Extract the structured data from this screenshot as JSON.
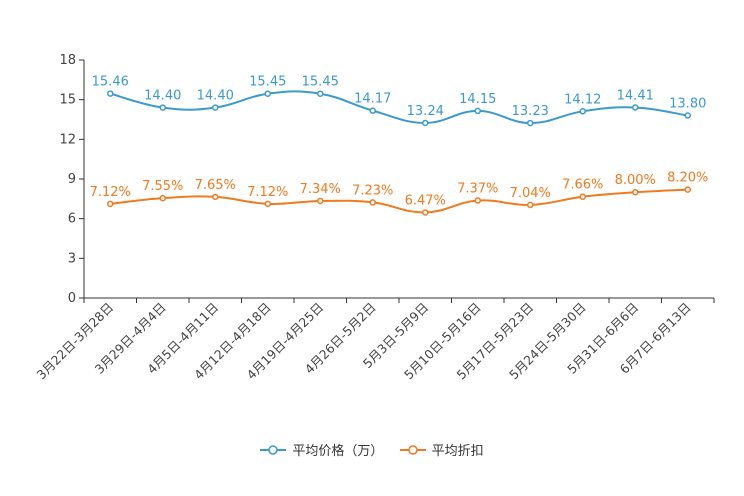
{
  "chart_data": {
    "type": "line",
    "title": "",
    "xlabel": "",
    "ylabel": "",
    "ylim": [
      0,
      18
    ],
    "yticks": [
      0,
      3,
      6,
      9,
      12,
      15,
      18
    ],
    "categories": [
      "3月22日-3月28日",
      "3月29日-4月4日",
      "4月5日-4月11日",
      "4月12日-4月18日",
      "4月19日-4月25日",
      "4月26日-5月2日",
      "5月3日-5月9日",
      "5月10日-5月16日",
      "5月17日-5月23日",
      "5月24日-5月30日",
      "5月31日-6月6日",
      "6月7日-6月13日"
    ],
    "series": [
      {
        "name": "平均价格（万）",
        "color": "#3a9ad0",
        "values": [
          15.46,
          14.4,
          14.4,
          15.45,
          15.45,
          14.17,
          13.24,
          14.15,
          13.23,
          14.12,
          14.41,
          13.8
        ],
        "labels": [
          "15.46",
          "14.40",
          "14.40",
          "15.45",
          "15.45",
          "14.17",
          "13.24",
          "14.15",
          "13.23",
          "14.12",
          "14.41",
          "13.80"
        ]
      },
      {
        "name": "平均折扣",
        "color": "#f07a1e",
        "values": [
          7.12,
          7.55,
          7.65,
          7.12,
          7.34,
          7.23,
          6.47,
          7.37,
          7.04,
          7.66,
          8.0,
          8.2
        ],
        "labels": [
          "7.12%",
          "7.55%",
          "7.65%",
          "7.12%",
          "7.34%",
          "7.23%",
          "6.47%",
          "7.37%",
          "7.04%",
          "7.66%",
          "8.00%",
          "8.20%"
        ]
      }
    ],
    "legend": "bottom-center",
    "grid": false
  }
}
